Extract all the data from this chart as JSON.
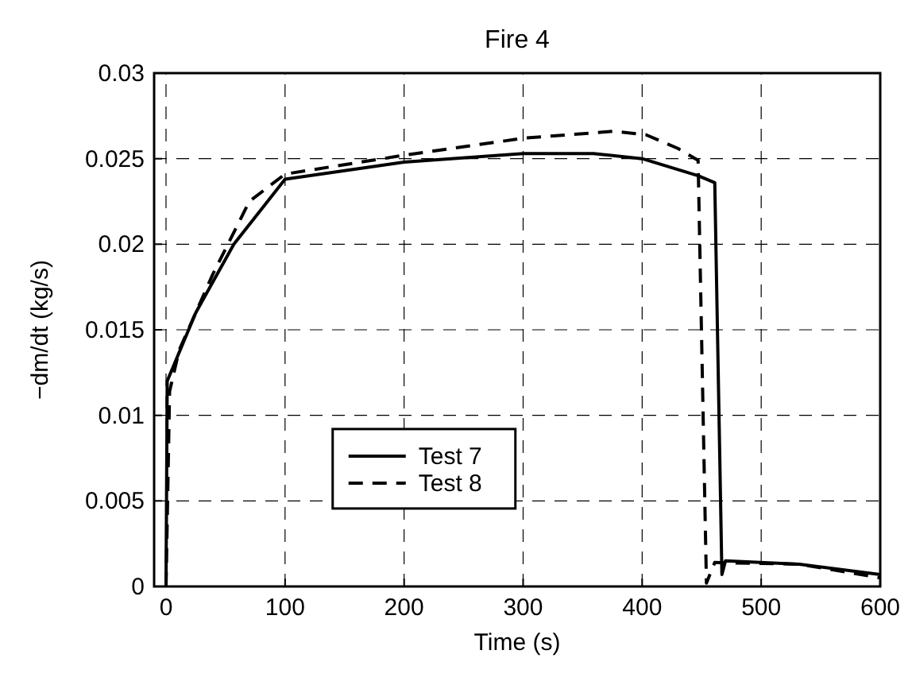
{
  "chart_data": {
    "type": "line",
    "title": "Fire 4",
    "xlabel": "Time (s)",
    "ylabel": "−dm/dt (kg/s)",
    "xlim": [
      -10,
      600
    ],
    "xticks": [
      0,
      100,
      200,
      300,
      400,
      500,
      600
    ],
    "ylim": [
      0,
      0.03
    ],
    "yticks": [
      0,
      0.005,
      0.01,
      0.015,
      0.02,
      0.025,
      0.03
    ],
    "grid": true,
    "legend": "bottom",
    "series": [
      {
        "name": "Test 7",
        "color": "#000000",
        "line_style": "solid",
        "x": [
          0,
          1,
          25,
          57,
          100,
          200,
          300,
          359,
          400,
          447,
          461,
          467,
          470,
          532,
          600
        ],
        "values": [
          0,
          0.012,
          0.016,
          0.02,
          0.0238,
          0.0248,
          0.0253,
          0.0253,
          0.025,
          0.024,
          0.0236,
          0.0007,
          0.0015,
          0.0013,
          0.0007
        ]
      },
      {
        "name": "Test 8",
        "color": "#000000",
        "line_style": "dashed",
        "x": [
          0,
          3,
          11,
          39,
          70,
          100,
          200,
          301,
          376,
          403,
          430,
          447,
          454,
          461,
          532,
          600
        ],
        "values": [
          0,
          0.0114,
          0.0138,
          0.0182,
          0.0225,
          0.0241,
          0.0252,
          0.0262,
          0.0266,
          0.0264,
          0.0256,
          0.0249,
          0.0002,
          0.0014,
          0.0013,
          0.0005
        ]
      }
    ]
  }
}
